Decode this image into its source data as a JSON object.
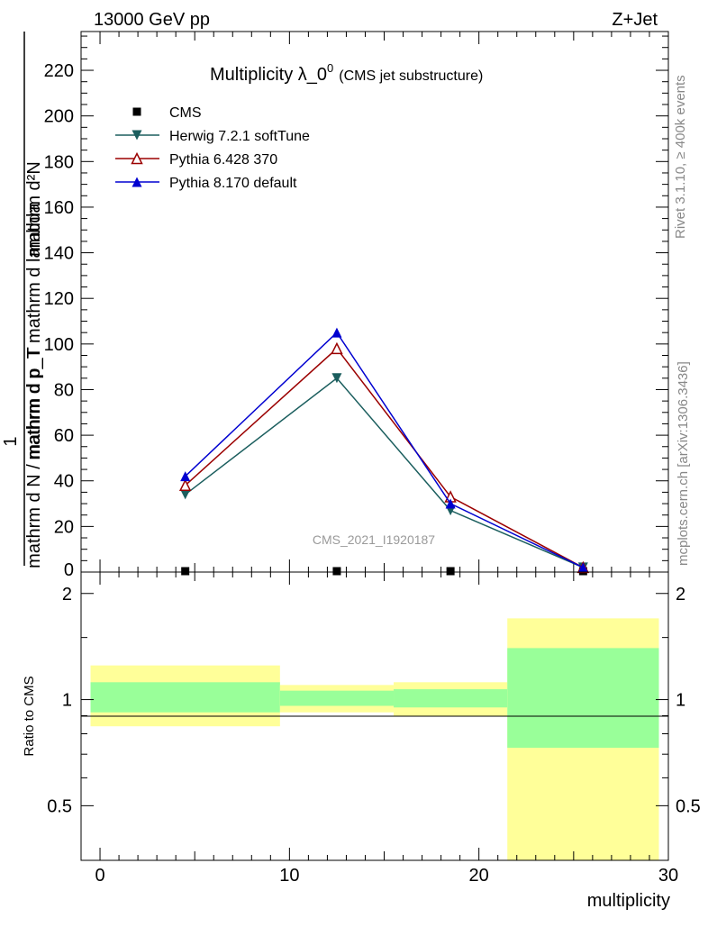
{
  "header": {
    "left": "13000 GeV pp",
    "right": "Z+Jet"
  },
  "side_labels": {
    "rivet": "Rivet 3.1.10, ≥ 400k events",
    "mcplots": "mcplots.cern.ch [arXiv:1306.3436]"
  },
  "chart_data": [
    {
      "type": "line",
      "title": "Multiplicity λ_0",
      "title_sup": "0",
      "subtitle": "(CMS jet substructure)",
      "watermark": "CMS_2021_I1920187",
      "xlabel": "multiplicity",
      "ylabel": {
        "numerator": "mathrm d²N",
        "frac1_num": "1",
        "frac1_den": "mathrm d N / mathrm d p_T",
        "frac2": "mathrm d p_T mathrm d lambda"
      },
      "xlim": [
        -1,
        30
      ],
      "ylim": [
        0,
        237
      ],
      "yticks": [
        20,
        40,
        60,
        80,
        100,
        120,
        140,
        160,
        180,
        200,
        220
      ],
      "ytick_labels": [
        "20",
        "40",
        "60",
        "80",
        "100",
        "120",
        "140",
        "160",
        "180",
        "200",
        "220"
      ],
      "y_bottom_label": "0",
      "legend": [
        "CMS",
        "Herwig 7.2.1 softTune",
        "Pythia 6.428 370",
        "Pythia 8.170 default"
      ],
      "series": [
        {
          "name": "CMS",
          "color": "#000000",
          "marker": "square",
          "x": [
            4.5,
            12.5,
            18.5,
            25.5
          ],
          "values": [
            0.5,
            0.5,
            0.5,
            0.5
          ]
        },
        {
          "name": "Herwig 7.2.1 softTune",
          "color": "#1b5e5e",
          "marker": "triangle-down",
          "x": [
            4.5,
            12.5,
            18.5,
            25.5
          ],
          "values": [
            34,
            85,
            27,
            2
          ]
        },
        {
          "name": "Pythia 6.428 370",
          "color": "#9b0000",
          "marker": "triangle-up-open",
          "x": [
            4.5,
            12.5,
            18.5,
            25.5
          ],
          "values": [
            38,
            98,
            33,
            2
          ]
        },
        {
          "name": "Pythia 8.170 default",
          "color": "#0000d0",
          "marker": "triangle-up",
          "x": [
            4.5,
            12.5,
            18.5,
            25.5
          ],
          "values": [
            42,
            105,
            30,
            2
          ]
        }
      ]
    },
    {
      "type": "area",
      "ylabel": "Ratio to CMS",
      "xlabel": "multiplicity",
      "xlim": [
        -1,
        30
      ],
      "ylim": [
        0.35,
        2.3
      ],
      "yticks": [
        0.5,
        1,
        2
      ],
      "ytick_labels": [
        "0.5",
        "1",
        "2"
      ],
      "xticks": [
        0,
        10,
        20,
        30
      ],
      "xtick_labels": [
        "0",
        "10",
        "20",
        "30"
      ],
      "bins": [
        {
          "x": [
            -0.5,
            9.5
          ],
          "yellow": [
            0.84,
            1.25
          ],
          "green": [
            0.92,
            1.12
          ]
        },
        {
          "x": [
            9.5,
            15.5
          ],
          "yellow": [
            0.92,
            1.1
          ],
          "green": [
            0.96,
            1.06
          ]
        },
        {
          "x": [
            15.5,
            21.5
          ],
          "yellow": [
            0.9,
            1.12
          ],
          "green": [
            0.95,
            1.07
          ]
        },
        {
          "x": [
            21.5,
            29.5
          ],
          "yellow": [
            0.35,
            1.7
          ],
          "green": [
            0.73,
            1.4
          ]
        }
      ],
      "colors": {
        "yellow": "#ffff99",
        "green": "#99ff99"
      }
    }
  ]
}
